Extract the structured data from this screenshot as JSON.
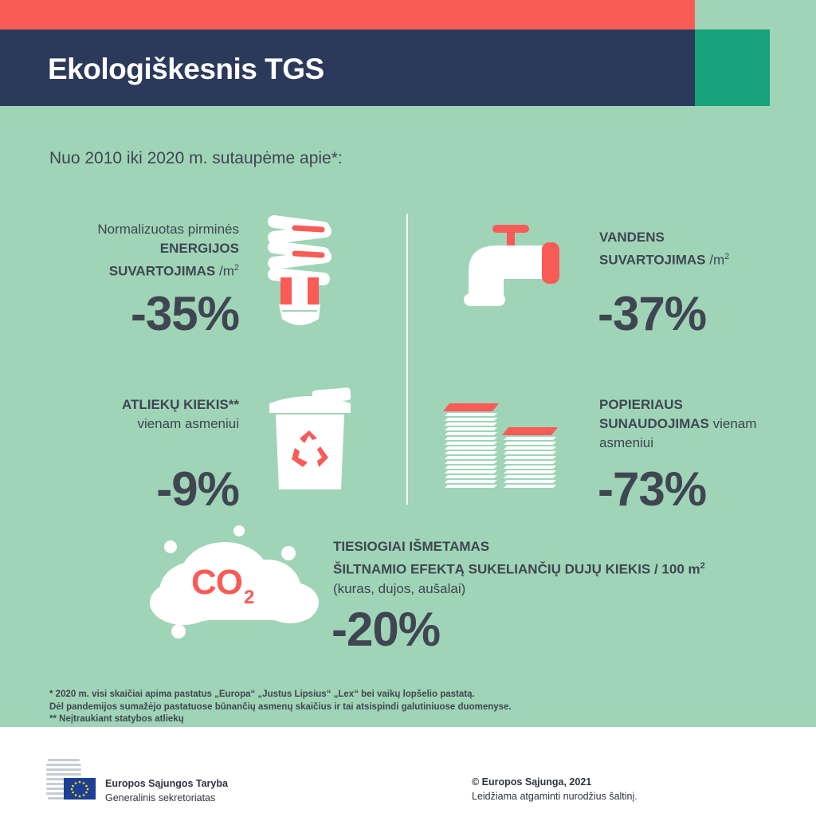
{
  "header": {
    "title": "Ekologiškesnis TGS"
  },
  "subtitle": "Nuo 2010 iki 2020 m. sutaupėme apie*:",
  "stats": {
    "energy": {
      "line1": "Normalizuotas pirminės",
      "line2": "ENERGIJOS",
      "line3": "SUVARTOJIMAS",
      "unit": "/m",
      "unit_sup": "2",
      "value": "-35%",
      "icon": "light-bulb-icon"
    },
    "water": {
      "line1": "VANDENS",
      "line2": "SUVARTOJIMAS",
      "unit": "/m",
      "unit_sup": "2",
      "value": "-37%",
      "icon": "water-tap-icon"
    },
    "waste": {
      "line1": "ATLIEKŲ KIEKIS**",
      "line2": "vienam asmeniui",
      "value": "-9%",
      "icon": "recycle-bin-icon"
    },
    "paper": {
      "line1": "POPIERIAUS",
      "line2_bold": "SUNAUDOJIMAS",
      "line2_rest": " vienam",
      "line3": "asmeniui",
      "value": "-73%",
      "icon": "paper-stack-icon"
    },
    "co2": {
      "line1": "TIESIOGIAI IŠMETAMAS",
      "line2": "ŠILTNAMIO EFEKTĄ SUKELIANČIŲ DUJŲ KIEKIS / 100 m",
      "line2_sup": "2",
      "line3": "(kuras, dujos, aušalai)",
      "value": "-20%",
      "icon_text": "CO",
      "icon_sub": "2",
      "icon": "co2-cloud-icon"
    }
  },
  "footnotes": [
    "* 2020 m. visi skaičiai apima pastatus „Europa“ „Justus Lipsius“ „Lex“ bei vaikų lopšelio pastatą.",
    "Dėl pandemijos sumažėjo pastatuose būnančių asmenų skaičius ir tai atsispindi galutiniuose duomenyse.",
    "** Neįtraukiant statybos atliekų"
  ],
  "footer": {
    "org_name": "Europos Sąjungos Taryba",
    "org_sub": "Generalinis sekretoriatas",
    "copyright": "© Europos Sąjunga, 2021",
    "reuse": "Leidžiama atgaminti nurodžius šaltinį."
  },
  "colors": {
    "red": "#f95b57",
    "navy": "#2b3a5a",
    "green": "#16a27b",
    "mint": "#9fd4b7",
    "text": "#3f4652",
    "white": "#ffffff"
  }
}
